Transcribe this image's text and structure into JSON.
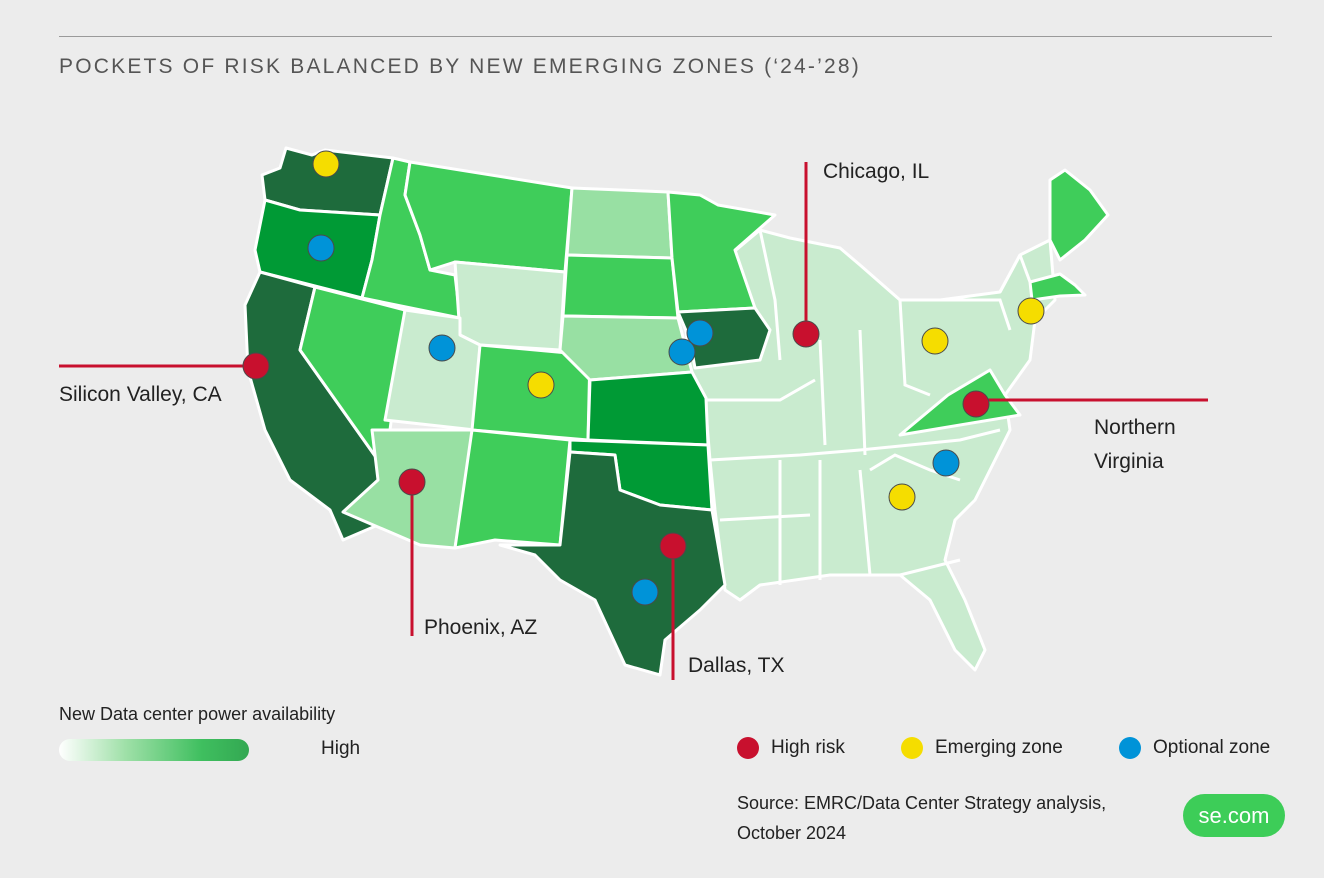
{
  "title": "POCKETS OF RISK BALANCED BY NEW EMERGING ZONES (‘24-’28)",
  "colors": {
    "background": "#ececec",
    "availability_very_low": "#c9ebcf",
    "availability_low": "#98e0a3",
    "availability_mid": "#3fcd5a",
    "availability_high": "#009a35",
    "availability_very_high": "#1e6b3c",
    "high_risk": "#c8102e",
    "emerging_zone": "#f5dd00",
    "optional_zone": "#0093d8",
    "leader_line": "#c8102e",
    "brand": "#3dcd58"
  },
  "map": {
    "states": [
      {
        "abbr": "WA",
        "availability": "very_high"
      },
      {
        "abbr": "OR",
        "availability": "high"
      },
      {
        "abbr": "CA",
        "availability": "very_high"
      },
      {
        "abbr": "ID",
        "availability": "mid"
      },
      {
        "abbr": "NV",
        "availability": "mid"
      },
      {
        "abbr": "MT",
        "availability": "mid"
      },
      {
        "abbr": "WY",
        "availability": "very_low"
      },
      {
        "abbr": "UT",
        "availability": "very_low"
      },
      {
        "abbr": "AZ",
        "availability": "low"
      },
      {
        "abbr": "CO",
        "availability": "mid"
      },
      {
        "abbr": "NM",
        "availability": "mid"
      },
      {
        "abbr": "ND",
        "availability": "low"
      },
      {
        "abbr": "SD",
        "availability": "mid"
      },
      {
        "abbr": "NE",
        "availability": "low"
      },
      {
        "abbr": "KS",
        "availability": "high"
      },
      {
        "abbr": "OK",
        "availability": "high"
      },
      {
        "abbr": "TX",
        "availability": "very_high"
      },
      {
        "abbr": "MN",
        "availability": "mid"
      },
      {
        "abbr": "IA",
        "availability": "very_high"
      },
      {
        "abbr": "VA",
        "availability": "mid"
      },
      {
        "abbr": "ME",
        "availability": "mid"
      },
      {
        "abbr": "MA",
        "availability": "mid"
      },
      {
        "abbr": "EAST",
        "availability": "very_low"
      }
    ],
    "markers": [
      {
        "type": "high_risk",
        "place": "Silicon Valley, CA"
      },
      {
        "type": "high_risk",
        "place": "Phoenix, AZ"
      },
      {
        "type": "high_risk",
        "place": "Dallas, TX"
      },
      {
        "type": "high_risk",
        "place": "Chicago, IL"
      },
      {
        "type": "high_risk",
        "place": "Northern Virginia"
      },
      {
        "type": "emerging_zone",
        "place": "WA"
      },
      {
        "type": "emerging_zone",
        "place": "CO"
      },
      {
        "type": "emerging_zone",
        "place": "OH"
      },
      {
        "type": "emerging_zone",
        "place": "NY"
      },
      {
        "type": "emerging_zone",
        "place": "GA"
      },
      {
        "type": "optional_zone",
        "place": "OR"
      },
      {
        "type": "optional_zone",
        "place": "UT"
      },
      {
        "type": "optional_zone",
        "place": "IA"
      },
      {
        "type": "optional_zone",
        "place": "NE"
      },
      {
        "type": "optional_zone",
        "place": "TX"
      },
      {
        "type": "optional_zone",
        "place": "SC"
      }
    ]
  },
  "callouts": {
    "silicon_valley": "Silicon Valley, CA",
    "chicago": "Chicago, IL",
    "northern_virginia_line1": "Northern",
    "northern_virginia_line2": "Virginia",
    "phoenix": "Phoenix, AZ",
    "dallas": "Dallas, TX"
  },
  "legend": {
    "gradient_title": "New Data center power availability",
    "gradient_high_label": "High",
    "high_risk_label": "High risk",
    "emerging_zone_label": "Emerging zone",
    "optional_zone_label": "Optional zone"
  },
  "source": {
    "line1": "Source: EMRC/Data Center Strategy analysis,",
    "line2": "October 2024"
  },
  "brand": {
    "label": "se.com"
  }
}
